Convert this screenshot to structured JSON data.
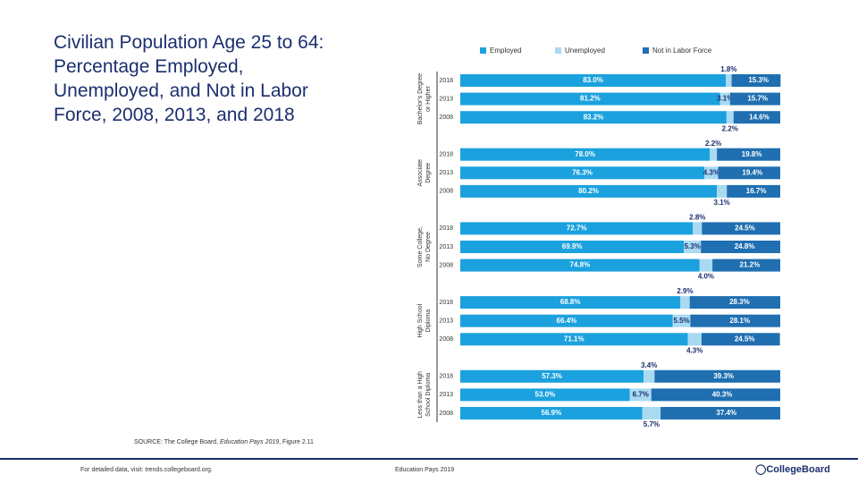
{
  "slide": {
    "title": "Civilian Population Age 25 to 64: Percentage Employed, Unemployed, and Not in Labor Force, 2008, 2013, and 2018",
    "source_prefix": "SOURCE: The College Board,",
    "source_italic": "Education Pays 2019",
    "source_suffix": ", Figure 2.11",
    "footer_left": "For detailed data, visit: trends.collegeboard.org.",
    "footer_center": "Education Pays 2019",
    "logo": "CollegeBoard"
  },
  "chart_data": {
    "type": "stacked-bar-horizontal",
    "groups": [
      [
        "Bachelor's Degree",
        "or Higher"
      ],
      [
        "Associate",
        "Degree"
      ],
      [
        "Some College,",
        "No Degree"
      ],
      [
        "High School",
        "Diploma"
      ],
      [
        "Less than a High",
        "School Diploma"
      ]
    ],
    "categories": [
      "2018",
      "2013",
      "2008",
      "2018",
      "2013",
      "2008",
      "2018",
      "2013",
      "2008",
      "2018",
      "2013",
      "2008",
      "2018",
      "2013",
      "2008"
    ],
    "series": [
      {
        "name": "Employed",
        "color": "#1ba1dd",
        "values": [
          83.0,
          81.2,
          83.2,
          78.0,
          76.3,
          80.2,
          72.7,
          69.9,
          74.8,
          68.8,
          66.4,
          71.1,
          57.3,
          53.0,
          56.9
        ],
        "value_labels": [
          "83.0%",
          "81.2%",
          "83.2%",
          "78.0%",
          "76.3%",
          "80.2%",
          "72.7%",
          "69.9%",
          "74.8%",
          "68.8%",
          "66.4%",
          "71.1%",
          "57.3%",
          "53.0%",
          "56.9%"
        ]
      },
      {
        "name": "Unemployed",
        "color": "#a9daf2",
        "values": [
          1.8,
          3.1,
          2.2,
          2.2,
          4.3,
          3.1,
          2.8,
          5.3,
          4.0,
          2.9,
          5.5,
          4.3,
          3.4,
          6.7,
          5.7
        ],
        "value_labels": [
          "1.8%",
          "3.1%",
          "2.2%",
          "2.2%",
          "4.3%",
          "3.1%",
          "2.8%",
          "5.3%",
          "4.0%",
          "2.9%",
          "5.5%",
          "4.3%",
          "3.4%",
          "6.7%",
          "5.7%"
        ]
      },
      {
        "name": "Not in Labor Force",
        "color": "#1f6fb1",
        "values": [
          15.3,
          15.7,
          14.6,
          19.8,
          19.4,
          16.7,
          24.5,
          24.8,
          21.2,
          28.3,
          28.1,
          24.5,
          39.3,
          40.3,
          37.4
        ],
        "value_labels": [
          "15.3%",
          "15.7%",
          "14.6%",
          "19.8%",
          "19.4%",
          "16.7%",
          "24.5%",
          "24.8%",
          "21.2%",
          "28.3%",
          "28.1%",
          "24.5%",
          "39.3%",
          "40.3%",
          "37.4%"
        ]
      }
    ]
  }
}
